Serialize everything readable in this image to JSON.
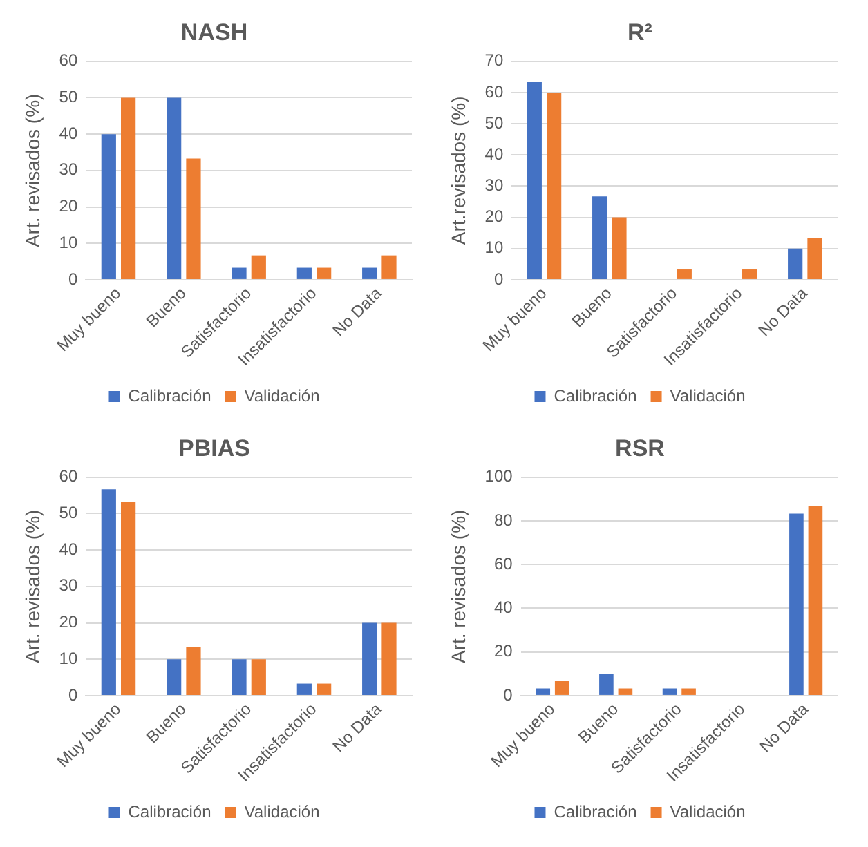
{
  "chart_data": [
    {
      "type": "bar",
      "title": "NASH",
      "ylabel": "Art. revisados (%)",
      "categories": [
        "Muy bueno",
        "Bueno",
        "Satisfactorio",
        "Insatisfactorio",
        "No Data"
      ],
      "series": [
        {
          "name": "Calibración",
          "color": "#4472c4",
          "values": [
            40,
            50,
            3.3,
            3.3,
            3.3
          ]
        },
        {
          "name": "Validación",
          "color": "#ed7d31",
          "values": [
            50,
            33.3,
            6.7,
            3.3,
            6.7
          ]
        }
      ],
      "ylim": [
        0,
        60
      ],
      "yticks": [
        0,
        10,
        20,
        30,
        40,
        50,
        60
      ],
      "grid": "y",
      "legend": "bottom"
    },
    {
      "type": "bar",
      "title": "R²",
      "ylabel": "Art.revisados (%)",
      "categories": [
        "Muy bueno",
        "Bueno",
        "Satisfactorio",
        "Insatisfactorio",
        "No Data"
      ],
      "series": [
        {
          "name": "Calibración",
          "color": "#4472c4",
          "values": [
            63.3,
            26.7,
            0,
            0,
            10
          ]
        },
        {
          "name": "Validación",
          "color": "#ed7d31",
          "values": [
            60,
            20,
            3.3,
            3.3,
            13.3
          ]
        }
      ],
      "ylim": [
        0,
        70
      ],
      "yticks": [
        0,
        10,
        20,
        30,
        40,
        50,
        60,
        70
      ],
      "grid": "y",
      "legend": "bottom"
    },
    {
      "type": "bar",
      "title": "PBIAS",
      "ylabel": "Art. revisados (%)",
      "categories": [
        "Muy bueno",
        "Bueno",
        "Satisfactorio",
        "Insatisfactorio",
        "No Data"
      ],
      "series": [
        {
          "name": "Calibración",
          "color": "#4472c4",
          "values": [
            56.7,
            10,
            10,
            3.3,
            20
          ]
        },
        {
          "name": "Validación",
          "color": "#ed7d31",
          "values": [
            53.3,
            13.3,
            10,
            3.3,
            20
          ]
        }
      ],
      "ylim": [
        0,
        60
      ],
      "yticks": [
        0,
        10,
        20,
        30,
        40,
        50,
        60
      ],
      "grid": "y",
      "legend": "bottom"
    },
    {
      "type": "bar",
      "title": "RSR",
      "ylabel": "Art. revisados (%)",
      "categories": [
        "Muy bueno",
        "Bueno",
        "Satisfactorio",
        "Insatisfactorio",
        "No Data"
      ],
      "series": [
        {
          "name": "Calibración",
          "color": "#4472c4",
          "values": [
            3.3,
            10,
            3.3,
            0,
            83.3
          ]
        },
        {
          "name": "Validación",
          "color": "#ed7d31",
          "values": [
            6.7,
            3.3,
            3.3,
            0,
            86.7
          ]
        }
      ],
      "ylim": [
        0,
        100
      ],
      "yticks": [
        0,
        20,
        40,
        60,
        80,
        100
      ],
      "grid": "y",
      "legend": "bottom"
    }
  ]
}
